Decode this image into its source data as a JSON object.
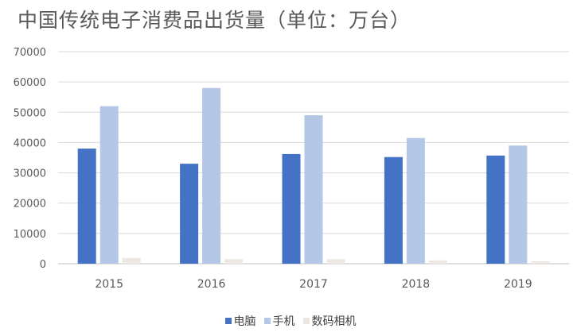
{
  "chart_data": {
    "type": "bar",
    "title": "中国传统电子消费品出货量（单位：万台）",
    "categories": [
      "2015",
      "2016",
      "2017",
      "2018",
      "2019"
    ],
    "series": [
      {
        "name": "电脑",
        "color": "#4472c4",
        "values": [
          38000,
          33000,
          36200,
          35200,
          35700
        ]
      },
      {
        "name": "手机",
        "color": "#b4c7e7",
        "values": [
          52000,
          58000,
          49000,
          41500,
          39000
        ]
      },
      {
        "name": "数码相机",
        "color": "#ece7e2",
        "values": [
          1900,
          1500,
          1500,
          1100,
          800
        ]
      }
    ],
    "ylim": [
      0,
      70000
    ],
    "yticks": [
      "0",
      "10000",
      "20000",
      "30000",
      "40000",
      "50000",
      "60000",
      "70000"
    ],
    "grid": true,
    "legend_position": "bottom"
  }
}
